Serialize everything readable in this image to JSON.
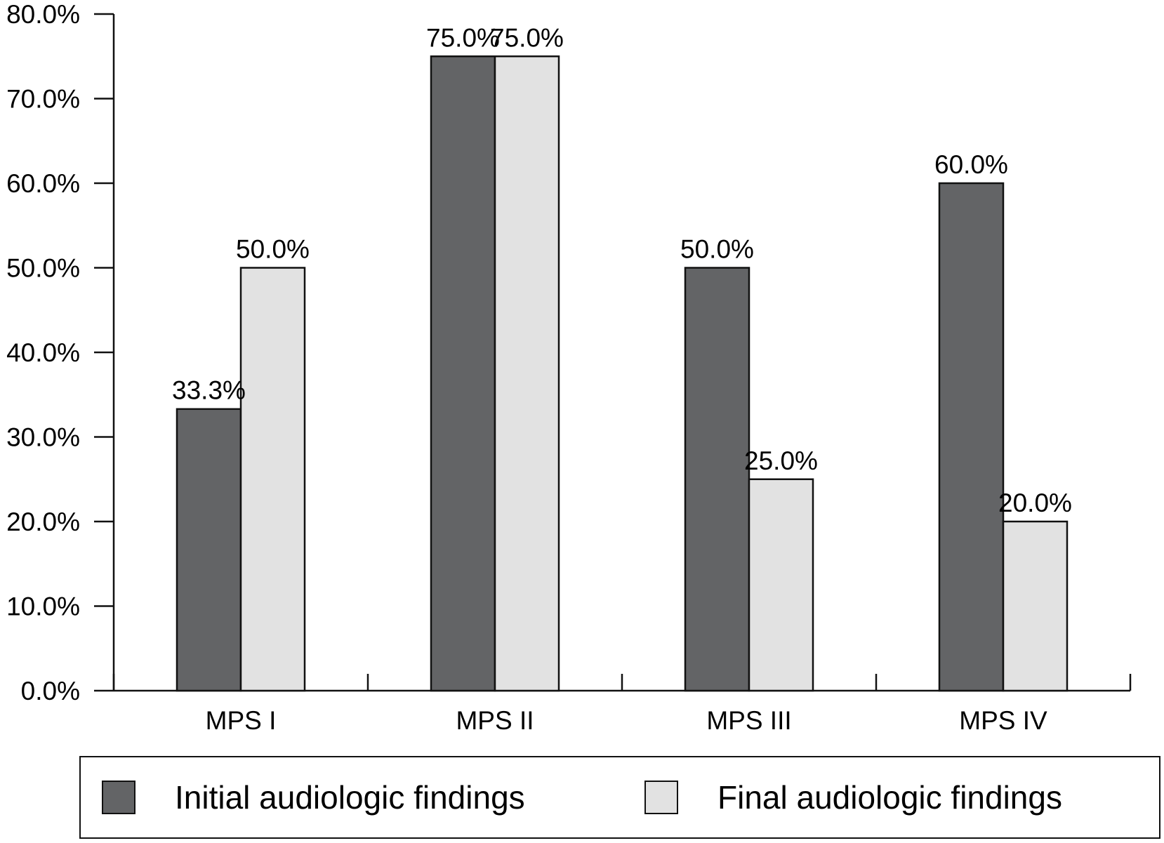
{
  "chart_data": {
    "type": "bar",
    "categories": [
      "MPS I",
      "MPS II",
      "MPS III",
      "MPS IV"
    ],
    "series": [
      {
        "name": "Initial audiologic findings",
        "values": [
          33.3,
          75.0,
          50.0,
          60.0
        ],
        "color": "#636466",
        "data_labels": [
          "33.3%",
          "75.0%",
          "50.0%",
          "60.0%"
        ]
      },
      {
        "name": "Final audiologic findings",
        "values": [
          50.0,
          75.0,
          25.0,
          20.0
        ],
        "color": "#e2e2e2",
        "data_labels": [
          "50.0%",
          "75.0%",
          "25.0%",
          "20.0%"
        ]
      }
    ],
    "y_ticks": [
      "0.0%",
      "10.0%",
      "20.0%",
      "30.0%",
      "40.0%",
      "50.0%",
      "60.0%",
      "70.0%",
      "80.0%"
    ],
    "ylim": [
      0,
      80
    ],
    "title": "",
    "xlabel": "",
    "ylabel": "",
    "grid": false,
    "legend_position": "bottom"
  }
}
